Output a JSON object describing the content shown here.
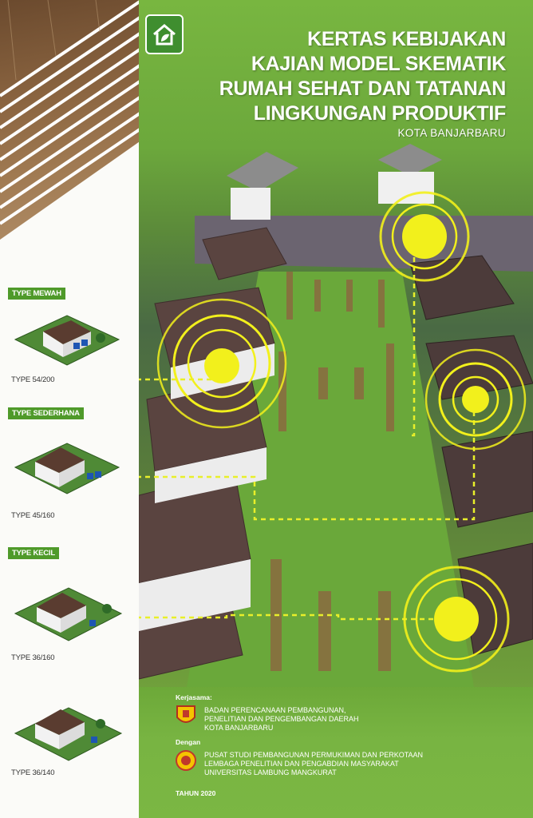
{
  "title_lines": [
    "KERTAS KEBIJAKAN",
    "KAJIAN MODEL SKEMATIK",
    "RUMAH SEHAT DAN TATANAN",
    "LINGKUNGAN PRODUKTIF"
  ],
  "subtitle": "KOTA BANJARBARU",
  "types": [
    {
      "tag": "TYPE MEWAH",
      "label": "TYPE 54/200"
    },
    {
      "tag": "TYPE SEDERHANA",
      "label": "TYPE 45/160"
    },
    {
      "tag": "TYPE KECIL",
      "label": "TYPE 36/160"
    },
    {
      "tag": "",
      "label": "TYPE 36/140"
    }
  ],
  "footer": {
    "kerjasama": "Kerjasama:",
    "org1_lines": [
      "BADAN PERENCANAAN PEMBANGUNAN,",
      "PENELITIAN DAN PENGEMBANGAN DAERAH",
      "KOTA BANJARBARU"
    ],
    "dengan": "Dengan",
    "org2_lines": [
      "PUSAT STUDI PEMBANGUNAN PERMUKIMAN DAN PERKOTAAN",
      "LEMBAGA PENELITIAN DAN PENGABDIAN MASYARAKAT",
      "UNIVERSITAS LAMBUNG MANGKURAT"
    ],
    "year": "TAHUN 2020"
  },
  "icons": {
    "logo": "house-leaf-icon",
    "emblem1": "banjarbaru-emblem-icon",
    "emblem2": "ulm-emblem-icon"
  },
  "colors": {
    "green_tag": "#4f9a2a",
    "yellow_marker": "#f2f01c",
    "panel_green": "#6ca83c"
  }
}
